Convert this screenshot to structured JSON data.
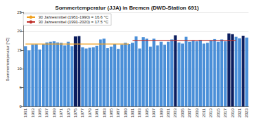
{
  "chart_data": {
    "type": "bar",
    "title": "Sommertemperatur (JJA) in Bremen (DWD-Station 691)",
    "y_label": "Sommertemperatur [°C]",
    "categories": [
      "1961",
      null,
      "1963",
      null,
      "1965",
      null,
      "1967",
      null,
      "1969",
      null,
      "1971",
      null,
      "1973",
      null,
      "1975",
      null,
      "1977",
      null,
      "1979",
      null,
      "1981",
      null,
      "1983",
      null,
      "1985",
      null,
      "1987",
      null,
      "1989",
      null,
      "1991",
      null,
      "1993",
      null,
      "1995",
      null,
      "1997",
      null,
      "1999",
      null,
      "2001",
      null,
      "2003",
      null,
      "2005",
      null,
      "2007",
      null,
      "2009",
      null,
      "2011",
      null,
      "2013",
      null,
      "2015",
      null,
      "2017",
      null,
      "2019",
      null,
      "2021",
      null,
      "2023"
    ],
    "values": [
      16.0,
      14.9,
      16.4,
      16.5,
      15.1,
      16.5,
      17.0,
      17.2,
      17.3,
      17.0,
      16.9,
      16.2,
      17.2,
      16.0,
      18.6,
      18.7,
      15.7,
      15.4,
      15.6,
      15.7,
      16.1,
      17.8,
      18.0,
      15.5,
      15.9,
      16.6,
      15.3,
      16.4,
      16.9,
      16.6,
      16.9,
      18.6,
      15.4,
      18.4,
      18.0,
      15.9,
      18.0,
      16.2,
      17.2,
      16.4,
      17.2,
      17.8,
      18.9,
      17.0,
      16.7,
      18.5,
      17.2,
      17.6,
      17.3,
      17.7,
      16.7,
      16.9,
      17.6,
      17.9,
      17.2,
      17.8,
      17.3,
      19.4,
      19.2,
      18.5,
      18.1,
      18.8,
      18.3
    ],
    "colors": [
      "#4a8fd8",
      "#4a8fd8",
      "#4a8fd8",
      "#4a8fd8",
      "#4a8fd8",
      "#4a8fd8",
      "#4a8fd8",
      "#4a8fd8",
      "#4a8fd8",
      "#4a8fd8",
      "#4a8fd8",
      "#4a8fd8",
      "#4a8fd8",
      "#4a8fd8",
      "#0b1d5e",
      "#0b1d5e",
      "#4a8fd8",
      "#4a8fd8",
      "#4a8fd8",
      "#4a8fd8",
      "#4a8fd8",
      "#4a8fd8",
      "#4a8fd8",
      "#4a8fd8",
      "#4a8fd8",
      "#4a8fd8",
      "#4a8fd8",
      "#4a8fd8",
      "#4a8fd8",
      "#4a8fd8",
      "#4a8fd8",
      "#4a8fd8",
      "#4a8fd8",
      "#4a8fd8",
      "#4a8fd8",
      "#4a8fd8",
      "#4a8fd8",
      "#4a8fd8",
      "#4a8fd8",
      "#4a8fd8",
      "#4a8fd8",
      "#4a8fd8",
      "#0b1d5e",
      "#4a8fd8",
      "#4a8fd8",
      "#4a8fd8",
      "#4a8fd8",
      "#4a8fd8",
      "#4a8fd8",
      "#4a8fd8",
      "#4a8fd8",
      "#4a8fd8",
      "#4a8fd8",
      "#4a8fd8",
      "#4a8fd8",
      "#4a8fd8",
      "#4a8fd8",
      "#0b1d5e",
      "#0b1d5e",
      "#4a8fd8",
      "#4a8fd8",
      "#0b1d5e",
      "#4a8fd8"
    ],
    "series": [
      {
        "name": "30 Jahresmittel (1961-1990) = 16.6 °C",
        "type": "line",
        "color": "#f0a020",
        "values": [
          16.6,
          16.6,
          16.6,
          16.6,
          16.6,
          16.6,
          16.6,
          16.6,
          16.6,
          16.6,
          16.6,
          16.6,
          16.6,
          16.6,
          16.6,
          16.6,
          16.6,
          16.6,
          16.6,
          16.6,
          16.6,
          16.6,
          16.6,
          16.6,
          16.6,
          16.6,
          16.6,
          16.6,
          16.6,
          16.6,
          null,
          null,
          null,
          null,
          null,
          null,
          null,
          null,
          null,
          null,
          null,
          null,
          null,
          null,
          null,
          null,
          null,
          null,
          null,
          null,
          null,
          null,
          null,
          null,
          null,
          null,
          null,
          null,
          null,
          null,
          null,
          null,
          null
        ]
      },
      {
        "name": "30 Jahresmittel (1991-2020) = 17.5 °C",
        "type": "line",
        "color": "#c0302a",
        "values": [
          null,
          null,
          null,
          null,
          null,
          null,
          null,
          null,
          null,
          null,
          null,
          null,
          null,
          null,
          null,
          null,
          null,
          null,
          null,
          null,
          null,
          null,
          null,
          null,
          null,
          null,
          null,
          null,
          null,
          null,
          17.5,
          17.5,
          17.5,
          17.5,
          17.5,
          17.5,
          17.5,
          17.5,
          17.5,
          17.5,
          17.5,
          17.5,
          17.5,
          17.5,
          17.5,
          17.5,
          17.5,
          17.5,
          17.5,
          17.5,
          17.5,
          17.5,
          17.5,
          17.5,
          17.5,
          17.5,
          17.5,
          17.5,
          17.5,
          17.5,
          null,
          null,
          null
        ]
      }
    ],
    "ylim": [
      0,
      25
    ],
    "yticks": [
      0,
      5,
      10,
      15,
      20,
      25
    ],
    "grid": true,
    "legend": "upper left"
  }
}
